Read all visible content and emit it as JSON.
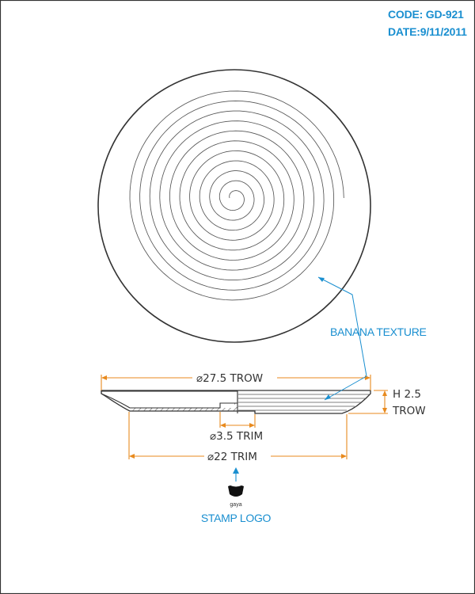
{
  "header": {
    "code": "CODE: GD-921",
    "date": "DATE:9/11/2011"
  },
  "callouts": {
    "banana_texture": "BANANA TEXTURE",
    "stamp_logo": "STAMP LOGO"
  },
  "logo": {
    "brand": "gaya"
  },
  "dimensions": {
    "outer_diameter": "⌀27.5 TROW",
    "height_line1": "H 2.5",
    "height_line2": "TROW",
    "foot_ring": "⌀3.5 TRIM",
    "base_diameter": "⌀22 TRIM"
  },
  "colors": {
    "accent_blue": "#1a8fd0",
    "dimension_orange": "#e88a1e",
    "line_dark": "#333333"
  },
  "icons": {
    "logo": "stamp-logo-icon",
    "arrow": "arrow-icon"
  }
}
